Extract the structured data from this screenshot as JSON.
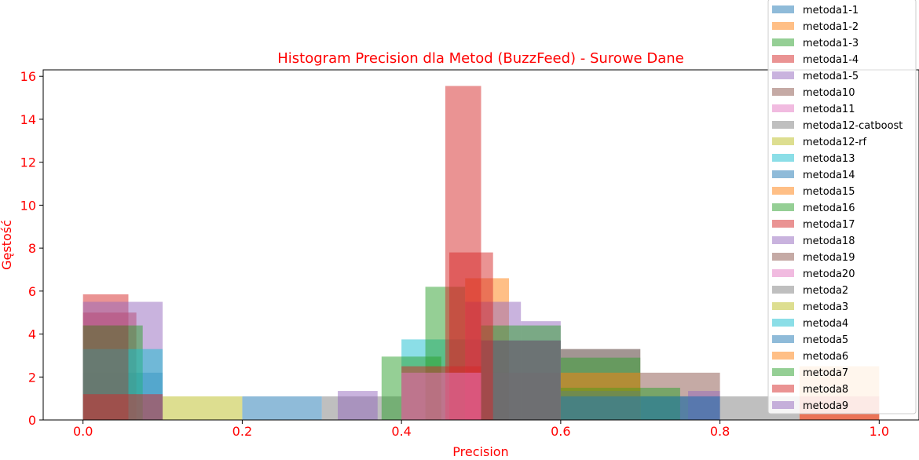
{
  "chart_data": {
    "type": "bar",
    "title": "Histogram Precision dla Metod (BuzzFeed) - Surowe Dane",
    "xlabel": "Precision",
    "ylabel": "Gęstość",
    "xlim": [
      -0.05,
      1.05
    ],
    "ylim": [
      0,
      16.3
    ],
    "x_ticks": [
      "0.0",
      "0.2",
      "0.4",
      "0.6",
      "0.8",
      "1.0"
    ],
    "y_ticks": [
      "0",
      "2",
      "4",
      "6",
      "8",
      "10",
      "12",
      "14",
      "16"
    ],
    "legend_position": "top-right",
    "legend": [
      "metoda1-1",
      "metoda1-2",
      "metoda1-3",
      "metoda1-4",
      "metoda1-5",
      "metoda10",
      "metoda11",
      "metoda12-catboost",
      "metoda12-rf",
      "metoda13",
      "metoda14",
      "metoda15",
      "metoda16",
      "metoda17",
      "metoda18",
      "metoda19",
      "metoda20",
      "metoda2",
      "metoda3",
      "metoda4",
      "metoda5",
      "metoda6",
      "metoda7",
      "metoda8",
      "metoda9"
    ],
    "colors": [
      "#1f77b4",
      "#ff7f0e",
      "#2ca02c",
      "#d62728",
      "#9467bd",
      "#8c564b",
      "#e377c2",
      "#7f7f7f",
      "#bcbd22",
      "#17becf",
      "#1f77b4",
      "#ff7f0e",
      "#2ca02c",
      "#d62728",
      "#9467bd",
      "#8c564b",
      "#e377c2",
      "#7f7f7f",
      "#bcbd22",
      "#17becf",
      "#1f77b4",
      "#ff7f0e",
      "#2ca02c",
      "#d62728",
      "#9467bd"
    ],
    "bars": [
      {
        "series": 0,
        "x0": 0.0,
        "x1": 0.1,
        "value": 2.2
      },
      {
        "series": 0,
        "x0": 0.2,
        "x1": 0.3,
        "value": 1.1
      },
      {
        "series": 0,
        "x0": 0.7,
        "x1": 0.8,
        "value": 1.1
      },
      {
        "series": 7,
        "x0": 0.3,
        "x1": 0.4,
        "value": 1.1
      },
      {
        "series": 7,
        "x0": 0.8,
        "x1": 0.9,
        "value": 1.1
      },
      {
        "series": 18,
        "x0": 0.1,
        "x1": 0.2,
        "value": 1.1
      },
      {
        "series": 15,
        "x0": 0.6,
        "x1": 0.7,
        "value": 3.3
      },
      {
        "series": 15,
        "x0": 0.7,
        "x1": 0.8,
        "value": 2.2
      },
      {
        "series": 17,
        "x0": 0.6,
        "x1": 0.7,
        "value": 3.3
      },
      {
        "series": 19,
        "x0": 0.4,
        "x1": 0.5,
        "value": 3.75
      },
      {
        "series": 14,
        "x0": 0.32,
        "x1": 0.37,
        "value": 1.35
      },
      {
        "series": 14,
        "x0": 0.76,
        "x1": 0.8,
        "value": 1.35
      },
      {
        "series": 22,
        "x0": 0.375,
        "x1": 0.45,
        "value": 2.95
      },
      {
        "series": 2,
        "x0": 0.43,
        "x1": 0.48,
        "value": 6.2
      },
      {
        "series": 2,
        "x0": 0.6,
        "x1": 0.7,
        "value": 2.9
      },
      {
        "series": 1,
        "x0": 0.48,
        "x1": 0.535,
        "value": 6.6
      },
      {
        "series": 21,
        "x0": 0.6,
        "x1": 0.7,
        "value": 1.5
      },
      {
        "series": 24,
        "x0": 0.48,
        "x1": 0.55,
        "value": 5.5
      },
      {
        "series": 4,
        "x0": 0.55,
        "x1": 0.6,
        "value": 4.6
      },
      {
        "series": 16,
        "x0": 0.5,
        "x1": 0.6,
        "value": 2.2
      },
      {
        "series": 12,
        "x0": 0.5,
        "x1": 0.6,
        "value": 4.4
      },
      {
        "series": 10,
        "x0": 0.5,
        "x1": 0.6,
        "value": 3.7
      },
      {
        "series": 5,
        "x0": 0.5,
        "x1": 0.6,
        "value": 3.7
      },
      {
        "series": 13,
        "x0": 0.455,
        "x1": 0.5,
        "value": 15.55
      },
      {
        "series": 23,
        "x0": 0.46,
        "x1": 0.515,
        "value": 7.8
      },
      {
        "series": 3,
        "x0": 0.4,
        "x1": 0.5,
        "value": 2.5
      },
      {
        "series": 3,
        "x0": 0.0,
        "x1": 0.057,
        "value": 5.85
      },
      {
        "series": 13,
        "x0": 0.0,
        "x1": 0.067,
        "value": 5.0
      },
      {
        "series": 4,
        "x0": 0.0,
        "x1": 0.1,
        "value": 5.5
      },
      {
        "series": 12,
        "x0": 0.0,
        "x1": 0.075,
        "value": 4.4
      },
      {
        "series": 9,
        "x0": 0.0,
        "x1": 0.1,
        "value": 3.3
      },
      {
        "series": 5,
        "x0": 0.0,
        "x1": 0.057,
        "value": 4.4
      },
      {
        "series": 6,
        "x0": 0.4,
        "x1": 0.5,
        "value": 2.2
      },
      {
        "series": 11,
        "x0": 0.6,
        "x1": 0.7,
        "value": 2.2
      },
      {
        "series": 24,
        "x0": 0.6,
        "x1": 0.7,
        "value": 1.35
      },
      {
        "series": 22,
        "x0": 0.6,
        "x1": 0.75,
        "value": 1.5
      },
      {
        "series": 21,
        "x0": 0.9,
        "x1": 1.0,
        "value": 2.5
      },
      {
        "series": 23,
        "x0": 0.9,
        "x1": 1.0,
        "value": 1.1
      },
      {
        "series": 20,
        "x0": 0.6,
        "x1": 0.7,
        "value": 1.1
      },
      {
        "series": 10,
        "x0": 0.7,
        "x1": 0.8,
        "value": 1.1
      },
      {
        "series": 3,
        "x0": 0.0,
        "x1": 0.1,
        "value": 1.2
      }
    ]
  }
}
